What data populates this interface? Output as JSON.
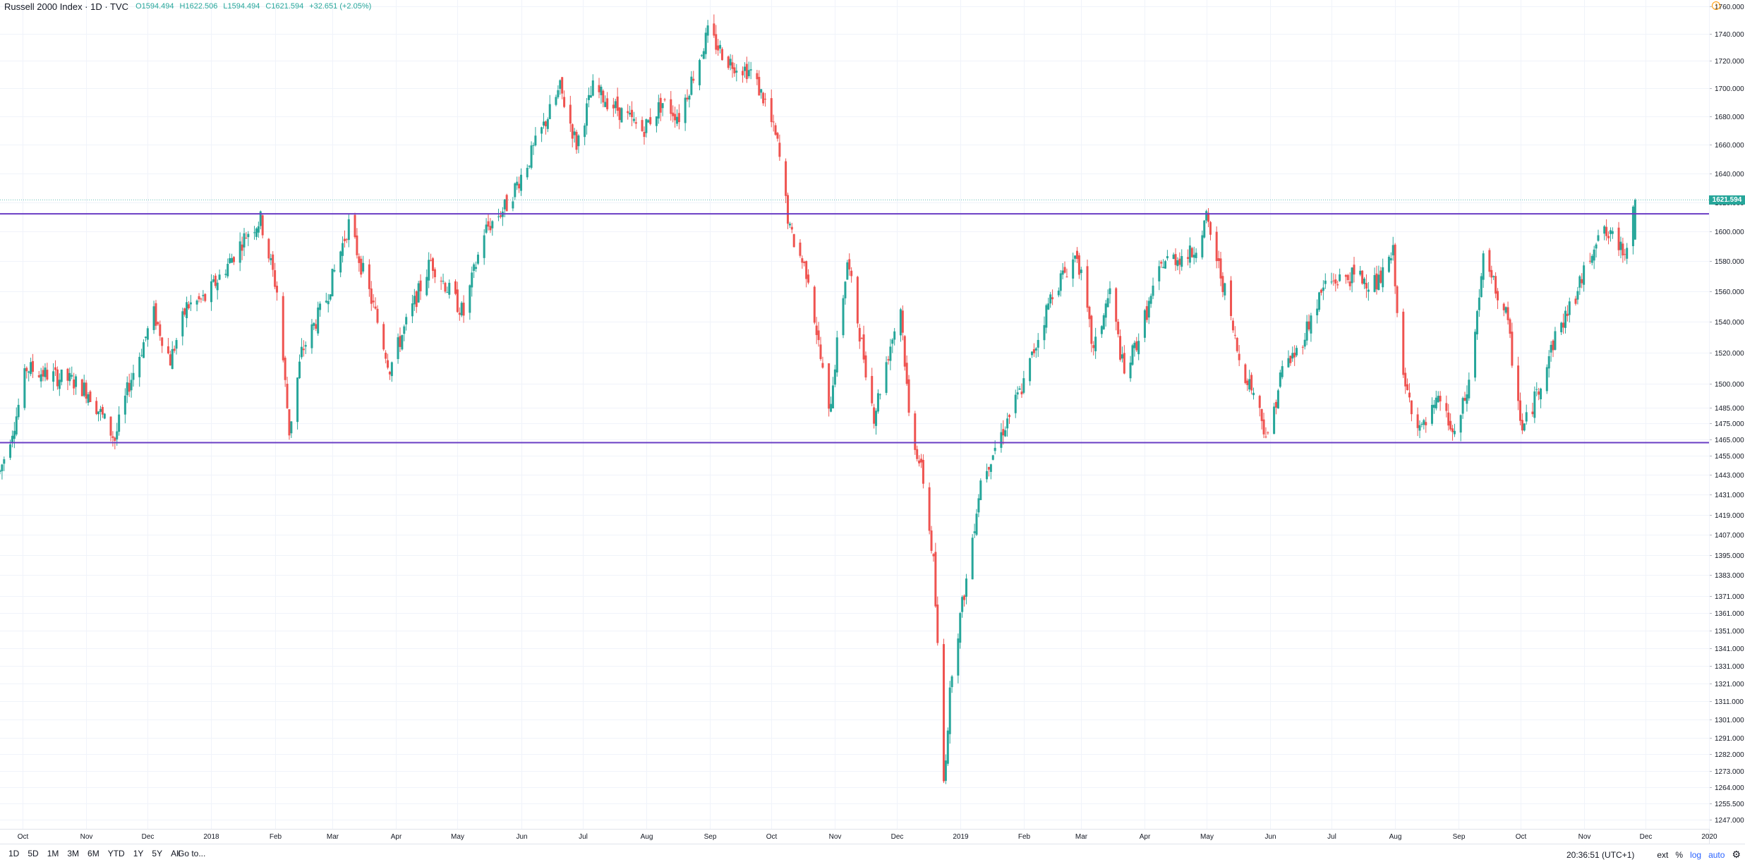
{
  "legend": {
    "title": "Russell 2000 Index · 1D · TVC",
    "open_label": "O",
    "open": "1594.494",
    "high_label": "H",
    "high": "1622.506",
    "low_label": "L",
    "low": "1594.494",
    "close_label": "C",
    "close": "1621.594",
    "change": "+32.651 (+2.05%)"
  },
  "last_price_tag": "1621.594",
  "bottom_bar": {
    "ranges": [
      "1D",
      "5D",
      "1M",
      "3M",
      "6M",
      "YTD",
      "1Y",
      "5Y",
      "All"
    ],
    "goto": "Go to...",
    "time": "20:36:51 (UTC+1)",
    "ext": "ext",
    "percent": "%",
    "log": "log",
    "auto": "auto"
  },
  "colors": {
    "up": "#26a69a",
    "down": "#ef5350",
    "level_line": "#6a3dc4",
    "grid": "#f0f3fa",
    "last_price": "#26a69a"
  },
  "icons": {
    "alert": "clock-alert-icon",
    "settings": "gear-icon"
  },
  "chart_data": {
    "type": "candlestick",
    "title": "Russell 2000 Index · 1D · TVC",
    "scale": "log",
    "grid": true,
    "y_tick_labels": [
      "1760.000",
      "1740.000",
      "1720.000",
      "1700.000",
      "1680.000",
      "1660.000",
      "1640.000",
      "1620.000",
      "1600.000",
      "1580.000",
      "1560.000",
      "1540.000",
      "1520.000",
      "1500.000",
      "1485.000",
      "1475.000",
      "1465.000",
      "1455.000",
      "1443.000",
      "1431.000",
      "1419.000",
      "1407.000",
      "1395.000",
      "1383.000",
      "1371.000",
      "1361.000",
      "1351.000",
      "1341.000",
      "1331.000",
      "1321.000",
      "1311.000",
      "1301.000",
      "1291.000",
      "1282.000",
      "1273.000",
      "1264.000",
      "1255.500",
      "1247.000"
    ],
    "x_tick_labels": [
      "Oct",
      "Nov",
      "Dec",
      "2018",
      "Feb",
      "Mar",
      "Apr",
      "May",
      "Jun",
      "Jul",
      "Aug",
      "Sep",
      "Oct",
      "Nov",
      "Dec",
      "2019",
      "Feb",
      "Mar",
      "Apr",
      "May",
      "Jun",
      "Jul",
      "Aug",
      "Sep",
      "Oct",
      "Nov",
      "Dec",
      "2020"
    ],
    "x_range": [
      "2017-09-20",
      "2020-01-01"
    ],
    "y_range": [
      1242,
      1765
    ],
    "horizontal_levels": [
      1612,
      1463
    ],
    "last_price": 1621.594,
    "price_path": [
      [
        "2017-09-20",
        1445
      ],
      [
        "2017-09-28",
        1480
      ],
      [
        "2017-10-03",
        1510
      ],
      [
        "2017-10-15",
        1505
      ],
      [
        "2017-10-25",
        1502
      ],
      [
        "2017-11-02",
        1495
      ],
      [
        "2017-11-15",
        1465
      ],
      [
        "2017-11-22",
        1500
      ],
      [
        "2017-11-30",
        1530
      ],
      [
        "2017-12-04",
        1545
      ],
      [
        "2017-12-12",
        1515
      ],
      [
        "2017-12-20",
        1550
      ],
      [
        "2017-12-29",
        1555
      ],
      [
        "2018-01-10",
        1580
      ],
      [
        "2018-01-19",
        1600
      ],
      [
        "2018-01-25",
        1608
      ],
      [
        "2018-02-02",
        1560
      ],
      [
        "2018-02-08",
        1470
      ],
      [
        "2018-02-14",
        1520
      ],
      [
        "2018-02-26",
        1555
      ],
      [
        "2018-03-09",
        1605
      ],
      [
        "2018-03-22",
        1545
      ],
      [
        "2018-03-29",
        1510
      ],
      [
        "2018-04-05",
        1535
      ],
      [
        "2018-04-18",
        1580
      ],
      [
        "2018-04-27",
        1560
      ],
      [
        "2018-05-04",
        1545
      ],
      [
        "2018-05-14",
        1600
      ],
      [
        "2018-05-25",
        1618
      ],
      [
        "2018-06-05",
        1650
      ],
      [
        "2018-06-20",
        1700
      ],
      [
        "2018-06-28",
        1660
      ],
      [
        "2018-07-06",
        1700
      ],
      [
        "2018-07-18",
        1685
      ],
      [
        "2018-07-30",
        1670
      ],
      [
        "2018-08-09",
        1690
      ],
      [
        "2018-08-17",
        1680
      ],
      [
        "2018-08-24",
        1710
      ],
      [
        "2018-08-31",
        1740
      ],
      [
        "2018-09-10",
        1720
      ],
      [
        "2018-09-21",
        1712
      ],
      [
        "2018-09-28",
        1690
      ],
      [
        "2018-10-04",
        1660
      ],
      [
        "2018-10-10",
        1600
      ],
      [
        "2018-10-19",
        1570
      ],
      [
        "2018-10-29",
        1480
      ],
      [
        "2018-11-07",
        1580
      ],
      [
        "2018-11-14",
        1525
      ],
      [
        "2018-11-20",
        1480
      ],
      [
        "2018-11-28",
        1525
      ],
      [
        "2018-12-03",
        1550
      ],
      [
        "2018-12-07",
        1480
      ],
      [
        "2018-12-14",
        1440
      ],
      [
        "2018-12-19",
        1390
      ],
      [
        "2018-12-24",
        1267
      ],
      [
        "2018-12-28",
        1330
      ],
      [
        "2019-01-04",
        1380
      ],
      [
        "2019-01-11",
        1440
      ],
      [
        "2019-01-18",
        1460
      ],
      [
        "2019-01-25",
        1480
      ],
      [
        "2019-02-01",
        1500
      ],
      [
        "2019-02-15",
        1560
      ],
      [
        "2019-02-27",
        1585
      ],
      [
        "2019-03-07",
        1520
      ],
      [
        "2019-03-15",
        1560
      ],
      [
        "2019-03-22",
        1505
      ],
      [
        "2019-03-29",
        1530
      ],
      [
        "2019-04-10",
        1580
      ],
      [
        "2019-04-24",
        1585
      ],
      [
        "2019-05-01",
        1608
      ],
      [
        "2019-05-10",
        1560
      ],
      [
        "2019-05-17",
        1515
      ],
      [
        "2019-05-24",
        1495
      ],
      [
        "2019-05-31",
        1465
      ],
      [
        "2019-06-07",
        1510
      ],
      [
        "2019-06-14",
        1520
      ],
      [
        "2019-06-28",
        1565
      ],
      [
        "2019-07-12",
        1570
      ],
      [
        "2019-07-24",
        1565
      ],
      [
        "2019-07-31",
        1585
      ],
      [
        "2019-08-05",
        1500
      ],
      [
        "2019-08-14",
        1470
      ],
      [
        "2019-08-23",
        1490
      ],
      [
        "2019-08-30",
        1465
      ],
      [
        "2019-09-06",
        1500
      ],
      [
        "2019-09-13",
        1580
      ],
      [
        "2019-09-24",
        1545
      ],
      [
        "2019-10-02",
        1470
      ],
      [
        "2019-10-08",
        1490
      ],
      [
        "2019-10-18",
        1530
      ],
      [
        "2019-10-29",
        1560
      ],
      [
        "2019-11-08",
        1600
      ],
      [
        "2019-11-15",
        1595
      ],
      [
        "2019-11-21",
        1588
      ],
      [
        "2019-11-26",
        1621.594
      ]
    ]
  }
}
